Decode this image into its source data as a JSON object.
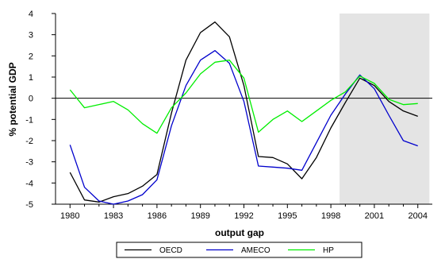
{
  "chart_data": {
    "type": "line",
    "xlabel": "output gap",
    "ylabel": "% potential GDP",
    "xlim": [
      1979,
      2005
    ],
    "ylim": [
      -5,
      4
    ],
    "x_ticks": [
      1980,
      1983,
      1986,
      1989,
      1992,
      1995,
      1998,
      2001,
      2004
    ],
    "y_ticks": [
      -5,
      -4,
      -3,
      -2,
      -1,
      0,
      1,
      2,
      3,
      4
    ],
    "grid": false,
    "legend_position": "bottom",
    "shaded_region": {
      "x_start": 1998.6,
      "x_end": 2004.8,
      "color": "#e4e4e4"
    },
    "zero_line": true,
    "x": [
      1980,
      1981,
      1982,
      1983,
      1984,
      1985,
      1986,
      1987,
      1988,
      1989,
      1990,
      1991,
      1992,
      1993,
      1994,
      1995,
      1996,
      1997,
      1998,
      1999,
      2000,
      2001,
      2002,
      2003,
      2004
    ],
    "series": [
      {
        "name": "OECD",
        "color": "#000000",
        "values": [
          -3.5,
          -4.8,
          -4.9,
          -4.65,
          -4.5,
          -4.15,
          -3.6,
          -0.7,
          1.8,
          3.1,
          3.6,
          2.9,
          0.6,
          -2.75,
          -2.8,
          -3.1,
          -3.8,
          -2.8,
          -1.4,
          -0.2,
          0.95,
          0.6,
          -0.15,
          -0.6,
          -0.85
        ]
      },
      {
        "name": "AMECO",
        "color": "#0000cc",
        "values": [
          -2.2,
          -4.2,
          -4.85,
          -5.0,
          -4.85,
          -4.55,
          -3.85,
          -1.3,
          0.6,
          1.8,
          2.25,
          1.65,
          -0.15,
          -3.2,
          -3.25,
          -3.3,
          -3.4,
          -2.1,
          -0.8,
          0.2,
          1.1,
          0.45,
          -0.8,
          -2.0,
          -2.25
        ]
      },
      {
        "name": "HP",
        "color": "#00ee00",
        "values": [
          0.4,
          -0.45,
          -0.3,
          -0.15,
          -0.55,
          -1.2,
          -1.65,
          -0.45,
          0.25,
          1.15,
          1.7,
          1.8,
          0.95,
          -1.6,
          -1.0,
          -0.6,
          -1.1,
          -0.6,
          -0.1,
          0.3,
          1.05,
          0.7,
          -0.05,
          -0.3,
          -0.25
        ]
      }
    ]
  }
}
